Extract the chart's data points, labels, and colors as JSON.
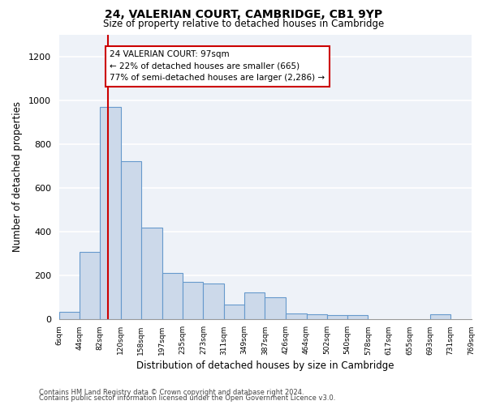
{
  "title1": "24, VALERIAN COURT, CAMBRIDGE, CB1 9YP",
  "title2": "Size of property relative to detached houses in Cambridge",
  "xlabel": "Distribution of detached houses by size in Cambridge",
  "ylabel": "Number of detached properties",
  "bar_color": "#ccd9ea",
  "bar_edge_color": "#6699cc",
  "annotation_line_color": "#cc0000",
  "annotation_box_color": "#cc0000",
  "annotation_text": "24 VALERIAN COURT: 97sqm\n← 22% of detached houses are smaller (665)\n77% of semi-detached houses are larger (2,286) →",
  "property_size": 97,
  "footer1": "Contains HM Land Registry data © Crown copyright and database right 2024.",
  "footer2": "Contains public sector information licensed under the Open Government Licence v3.0.",
  "bin_edges": [
    6,
    44,
    82,
    120,
    158,
    197,
    235,
    273,
    311,
    349,
    387,
    426,
    464,
    502,
    540,
    578,
    617,
    655,
    693,
    731,
    769
  ],
  "bar_heights": [
    30,
    305,
    970,
    720,
    415,
    210,
    170,
    160,
    65,
    120,
    100,
    25,
    20,
    18,
    18,
    0,
    0,
    0,
    22,
    0
  ],
  "ylim": [
    0,
    1300
  ],
  "yticks": [
    0,
    200,
    400,
    600,
    800,
    1000,
    1200
  ],
  "background_color": "#eef2f8",
  "grid_color": "#ffffff"
}
